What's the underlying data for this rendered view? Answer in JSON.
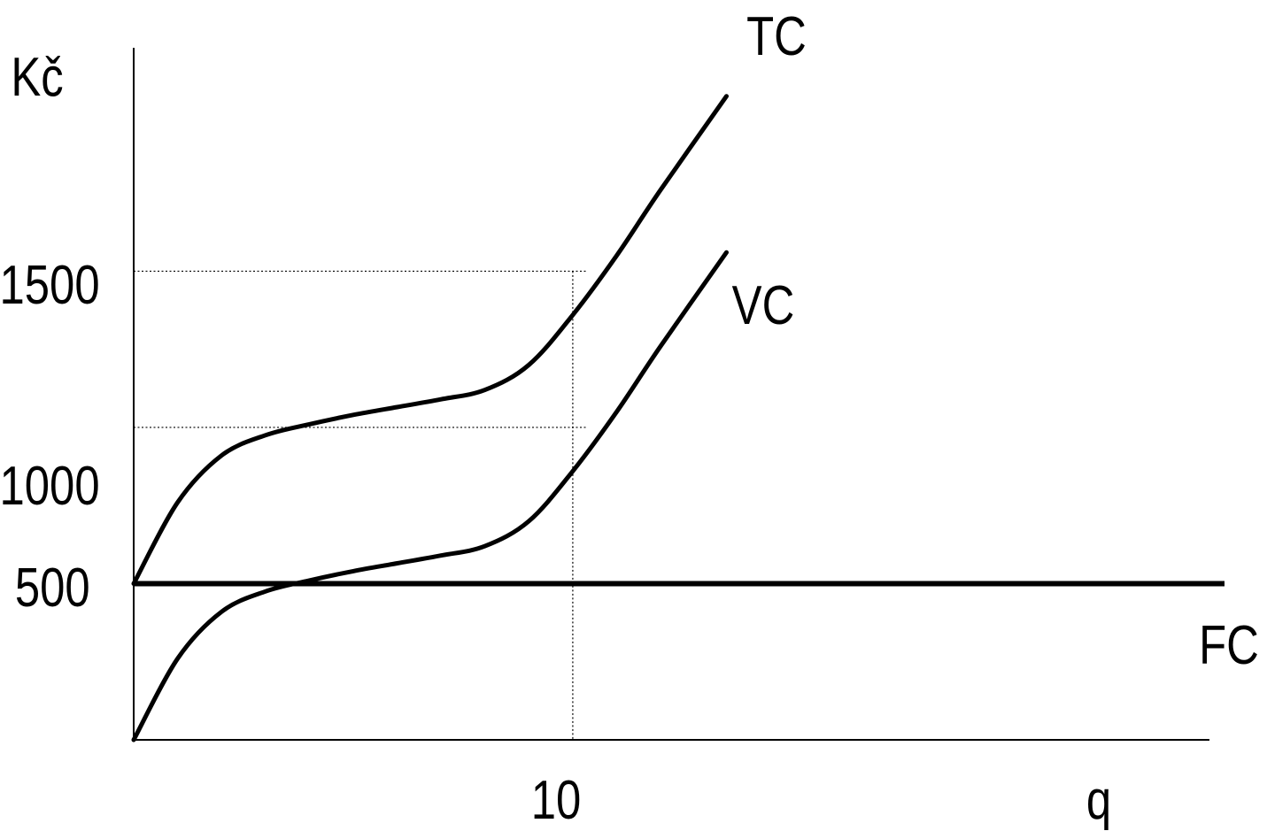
{
  "chart_data": {
    "type": "line",
    "ylabel": "Kč",
    "xlabel": "q",
    "x_ticks": [
      "10"
    ],
    "y_ticks": [
      "500",
      "1000",
      "1500"
    ],
    "series": [
      {
        "name": "TC",
        "x": [
          0,
          1,
          2,
          3,
          4,
          5,
          6,
          7,
          8,
          9,
          10,
          11,
          12,
          13.5
        ],
        "y": [
          500,
          760,
          910,
          975,
          1010,
          1040,
          1065,
          1090,
          1120,
          1200,
          1360,
          1550,
          1760,
          2060
        ]
      },
      {
        "name": "VC",
        "x": [
          0,
          1,
          2,
          3,
          4,
          5,
          6,
          7,
          8,
          9,
          10,
          11,
          12,
          13.5
        ],
        "y": [
          0,
          260,
          410,
          475,
          510,
          540,
          565,
          590,
          620,
          700,
          860,
          1050,
          1260,
          1560
        ]
      },
      {
        "name": "FC",
        "x": [
          0,
          25
        ],
        "y": [
          500,
          500
        ]
      }
    ],
    "guides": {
      "x": 10,
      "y_values": [
        1500,
        1000
      ]
    },
    "xlim": [
      0,
      24.5
    ],
    "ylim": [
      0,
      2215
    ],
    "grid": false,
    "legend": "none"
  }
}
